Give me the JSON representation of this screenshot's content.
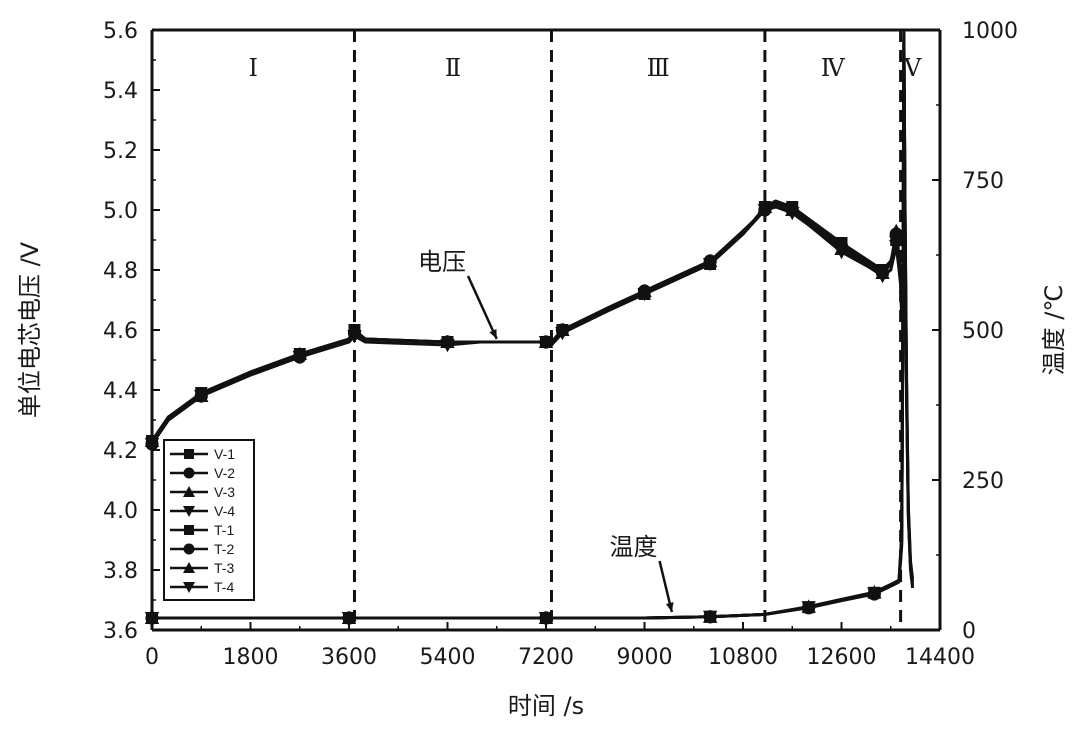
{
  "chart_data": {
    "type": "line",
    "xlabel": "时间 /s",
    "ylabel_left": "单位电芯电压 /V",
    "ylabel_right": "温度 /℃",
    "xlim": [
      0,
      14400
    ],
    "ylim_left": [
      3.6,
      5.6
    ],
    "ylim_right": [
      0,
      1000
    ],
    "x_ticks": [
      0,
      1800,
      3600,
      5400,
      7200,
      9000,
      10800,
      12600,
      14400
    ],
    "y_left_ticks": [
      3.6,
      3.8,
      4.0,
      4.2,
      4.4,
      4.6,
      4.8,
      5.0,
      5.2,
      5.4,
      5.6
    ],
    "y_left_tick_labels": [
      "3.6",
      "3.8",
      "4.0",
      "4.2",
      "4.4",
      "4.6",
      "4.8",
      "5.0",
      "5.2",
      "5.4",
      "5.6"
    ],
    "y_right_ticks": [
      0,
      250,
      500,
      750,
      1000
    ],
    "region_boundaries": [
      3700,
      7300,
      11200,
      13680
    ],
    "regions": [
      {
        "label": "Ⅰ",
        "x": 1850
      },
      {
        "label": "Ⅱ",
        "x": 5500
      },
      {
        "label": "Ⅲ",
        "x": 9250
      },
      {
        "label": "Ⅳ",
        "x": 12440
      },
      {
        "label": "Ⅴ",
        "x": 13900
      }
    ],
    "annotations": [
      {
        "text": "电压",
        "x": 5300,
        "y_left": 4.8,
        "arrow_to_x": 6300,
        "arrow_to_y_left": 4.57
      },
      {
        "text": "温度",
        "x": 8800,
        "y_left": 3.85,
        "arrow_to_x": 9500,
        "arrow_to_y_left": 3.66
      }
    ],
    "legend_position": "bottom-left",
    "series": [
      {
        "name": "V-1",
        "axis": "left",
        "marker": "square",
        "x": [
          0,
          300,
          900,
          1800,
          2700,
          3600,
          3700,
          3900,
          5400,
          6000,
          7200,
          7300,
          7500,
          8400,
          9000,
          9600,
          10200,
          10800,
          11200,
          11400,
          11700,
          12000,
          12600,
          13100,
          13350,
          13500,
          13600,
          13680,
          13700
        ],
        "y": [
          4.23,
          4.31,
          4.39,
          4.46,
          4.52,
          4.57,
          4.6,
          4.57,
          4.56,
          4.56,
          4.56,
          4.56,
          4.6,
          4.67,
          4.72,
          4.77,
          4.82,
          4.92,
          5.01,
          5.03,
          5.01,
          4.97,
          4.89,
          4.83,
          4.8,
          4.83,
          4.9,
          4.75,
          4.65
        ]
      },
      {
        "name": "V-2",
        "axis": "left",
        "marker": "circle",
        "x": [
          0,
          300,
          900,
          1800,
          2700,
          3600,
          3700,
          3900,
          5400,
          6000,
          7200,
          7300,
          7500,
          8400,
          9000,
          9600,
          10200,
          10800,
          11200,
          11400,
          11700,
          12000,
          12600,
          13100,
          13350,
          13500,
          13600,
          13680,
          13700
        ],
        "y": [
          4.22,
          4.3,
          4.38,
          4.45,
          4.51,
          4.56,
          4.59,
          4.57,
          4.56,
          4.56,
          4.56,
          4.55,
          4.6,
          4.67,
          4.73,
          4.78,
          4.83,
          4.93,
          5.0,
          5.02,
          5.0,
          4.96,
          4.88,
          4.82,
          4.79,
          4.82,
          4.92,
          4.78,
          4.66
        ]
      },
      {
        "name": "V-3",
        "axis": "left",
        "marker": "triangle-up",
        "x": [
          0,
          300,
          900,
          1800,
          2700,
          3600,
          3700,
          3900,
          5400,
          6000,
          7200,
          7300,
          7500,
          8400,
          9000,
          9600,
          10200,
          10800,
          11200,
          11400,
          11700,
          12000,
          12600,
          13100,
          13350,
          13500,
          13600,
          13680,
          13700
        ],
        "y": [
          4.23,
          4.31,
          4.38,
          4.46,
          4.52,
          4.57,
          4.59,
          4.57,
          4.56,
          4.56,
          4.56,
          4.56,
          4.6,
          4.68,
          4.73,
          4.78,
          4.83,
          4.92,
          5.01,
          5.02,
          5.0,
          4.95,
          4.87,
          4.81,
          4.79,
          4.82,
          4.93,
          4.8,
          4.68
        ]
      },
      {
        "name": "V-4",
        "axis": "left",
        "marker": "triangle-down",
        "x": [
          0,
          300,
          900,
          1800,
          2700,
          3600,
          3700,
          3900,
          5400,
          6000,
          7200,
          7300,
          7500,
          8400,
          9000,
          9600,
          10200,
          10800,
          11200,
          11400,
          11700,
          12000,
          12600,
          13100,
          13350,
          13500,
          13600,
          13680,
          13700
        ],
        "y": [
          4.22,
          4.3,
          4.38,
          4.45,
          4.51,
          4.56,
          4.58,
          4.56,
          4.55,
          4.56,
          4.56,
          4.55,
          4.59,
          4.67,
          4.72,
          4.77,
          4.82,
          4.92,
          5.0,
          5.01,
          4.99,
          4.95,
          4.86,
          4.81,
          4.78,
          4.8,
          4.88,
          4.76,
          4.64
        ]
      },
      {
        "name": "T-1",
        "axis": "right",
        "marker": "square",
        "x": [
          0,
          1800,
          3600,
          5400,
          7200,
          9000,
          10200,
          11200,
          12000,
          12600,
          13200,
          13500,
          13650,
          13700,
          13720,
          13740,
          13760,
          13790,
          13820,
          13860,
          13900
        ],
        "y": [
          20,
          20,
          20,
          20,
          20,
          20,
          22,
          26,
          38,
          50,
          62,
          75,
          82,
          150,
          500,
          1000,
          700,
          400,
          200,
          110,
          80
        ]
      },
      {
        "name": "T-2",
        "axis": "right",
        "marker": "circle",
        "x": [
          0,
          1800,
          3600,
          5400,
          7200,
          9000,
          10200,
          11200,
          12000,
          12600,
          13200,
          13500,
          13650,
          13700,
          13720,
          13740,
          13760,
          13790,
          13820,
          13860,
          13900
        ],
        "y": [
          20,
          20,
          20,
          20,
          20,
          20,
          22,
          26,
          37,
          49,
          60,
          73,
          80,
          140,
          450,
          990,
          680,
          380,
          190,
          100,
          70
        ]
      },
      {
        "name": "T-3",
        "axis": "right",
        "marker": "triangle-up",
        "x": [
          0,
          1800,
          3600,
          5400,
          7200,
          9000,
          10200,
          11200,
          12000,
          12600,
          13200,
          13500,
          13650,
          13700,
          13720,
          13740,
          13760,
          13790,
          13820,
          13860,
          13900
        ],
        "y": [
          20,
          20,
          20,
          20,
          20,
          20,
          22,
          26,
          39,
          51,
          63,
          76,
          83,
          160,
          520,
          995,
          720,
          420,
          210,
          115,
          85
        ]
      },
      {
        "name": "T-4",
        "axis": "right",
        "marker": "triangle-down",
        "x": [
          0,
          1800,
          3600,
          5400,
          7200,
          9000,
          10200,
          11200,
          12000,
          12600,
          13200,
          13500,
          13650,
          13700,
          13720,
          13740,
          13760,
          13790,
          13820,
          13860,
          13900
        ],
        "y": [
          20,
          20,
          20,
          20,
          20,
          20,
          22,
          26,
          38,
          50,
          61,
          74,
          81,
          145,
          480,
          985,
          690,
          390,
          195,
          105,
          75
        ]
      }
    ]
  }
}
